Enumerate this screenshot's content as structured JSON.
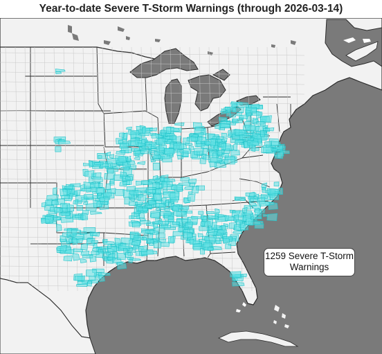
{
  "title": "Year-to-date Severe T-Storm Warnings (through 2026-03-14)",
  "legend": {
    "line1": "1259 Severe T-Storm",
    "line2": "Warnings"
  },
  "colors": {
    "land": "#f2f2f2",
    "water": "#7a7a7a",
    "border": "#2a2a2a",
    "county_line": "#c8c8c8",
    "warning_fill": "#5ee0e4",
    "warning_edge": "#1ec3c9"
  }
}
